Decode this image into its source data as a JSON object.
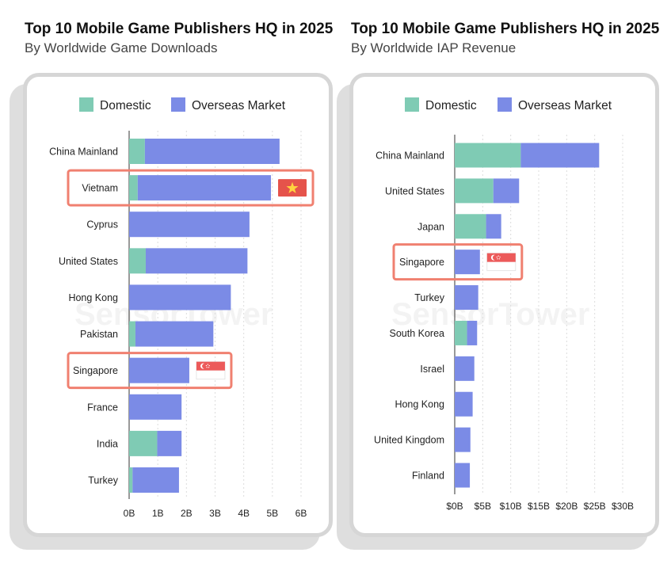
{
  "colors": {
    "domestic": "#7fcbb4",
    "overseas": "#7b8be6",
    "highlight": "#f08070",
    "grid": "#dcdcdc",
    "vietnam_flag": "#e5534b",
    "vietnam_star": "#ffd23f",
    "singapore_red": "#ec5a5a"
  },
  "watermark_text": "SensorTower",
  "chart_data": [
    {
      "type": "bar",
      "orientation": "horizontal",
      "stacked": true,
      "title": "Top 10 Mobile Game Publishers HQ in 2025",
      "subtitle": "By Worldwide Game Downloads",
      "categories": [
        "China Mainland",
        "Vietnam",
        "Cyprus",
        "United States",
        "Hong Kong",
        "Pakistan",
        "Singapore",
        "France",
        "India",
        "Turkey"
      ],
      "series": [
        {
          "name": "Domestic",
          "values": [
            0.55,
            0.3,
            0.0,
            0.58,
            0.0,
            0.22,
            0.0,
            0.0,
            0.98,
            0.12
          ]
        },
        {
          "name": "Overseas Market",
          "values": [
            4.7,
            4.65,
            4.2,
            3.55,
            3.55,
            2.72,
            2.1,
            1.83,
            0.85,
            1.62
          ]
        }
      ],
      "xlim": [
        0,
        6
      ],
      "x_ticks": [
        "0B",
        "1B",
        "2B",
        "3B",
        "4B",
        "5B",
        "6B"
      ],
      "x_tick_values": [
        0,
        1,
        2,
        3,
        4,
        5,
        6
      ],
      "legend_placement": "top",
      "grid": true,
      "highlights": [
        {
          "category": "Vietnam",
          "flag": "vietnam"
        },
        {
          "category": "Singapore",
          "flag": "singapore"
        }
      ]
    },
    {
      "type": "bar",
      "orientation": "horizontal",
      "stacked": true,
      "title": "Top 10 Mobile Game Publishers HQ in 2025",
      "subtitle": "By Worldwide IAP Revenue",
      "categories": [
        "China Mainland",
        "United States",
        "Japan",
        "Singapore",
        "Turkey",
        "South Korea",
        "Israel",
        "Hong Kong",
        "United Kingdom",
        "Finland"
      ],
      "series": [
        {
          "name": "Domestic",
          "values": [
            11.8,
            6.9,
            5.6,
            0.0,
            0.0,
            2.2,
            0.0,
            0.0,
            0.0,
            0.0
          ]
        },
        {
          "name": "Overseas Market",
          "values": [
            14.0,
            4.6,
            2.7,
            4.5,
            4.2,
            1.8,
            3.5,
            3.2,
            2.8,
            2.7
          ]
        }
      ],
      "xlim": [
        0,
        30
      ],
      "x_ticks": [
        "$0B",
        "$5B",
        "$10B",
        "$15B",
        "$20B",
        "$25B",
        "$30B"
      ],
      "x_tick_values": [
        0,
        5,
        10,
        15,
        20,
        25,
        30
      ],
      "legend_placement": "top",
      "grid": true,
      "highlights": [
        {
          "category": "Singapore",
          "flag": "singapore"
        }
      ]
    }
  ]
}
